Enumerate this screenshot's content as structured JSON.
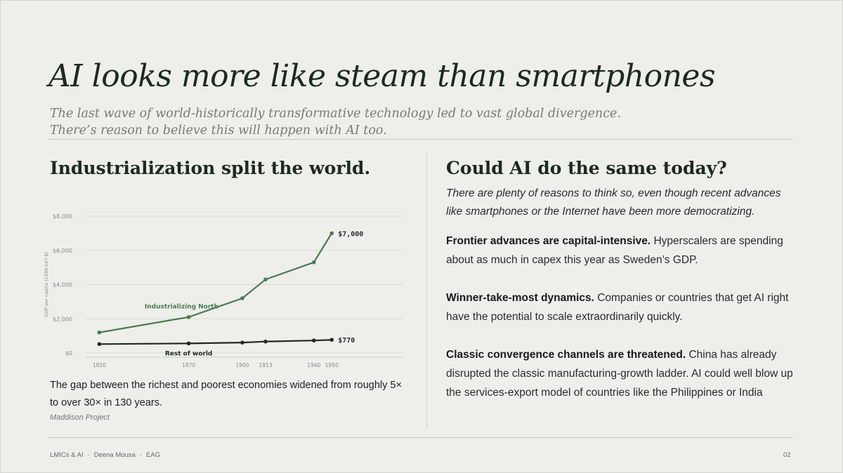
{
  "title": "AI looks more like steam than smartphones",
  "subtitle": {
    "line1": "The last wave of world-historically transformative technology led to vast global divergence.",
    "line2": "There’s reason to believe this will happen with AI too."
  },
  "left": {
    "heading": "Industrialization split the world.",
    "caption": "The gap between the richest and poorest economies widened from roughly 5× to over 30× in 130 years.",
    "source": "Maddison Project"
  },
  "chart_data": {
    "type": "line",
    "ylabel": "GDP per capita (1990 int'l $)",
    "ylim": [
      0,
      8000
    ],
    "yticks": [
      0,
      2000,
      4000,
      6000,
      8000
    ],
    "ytick_labels": [
      "$0",
      "$2,000",
      "$4,000",
      "$6,000",
      "$8,000"
    ],
    "xlim": [
      1812,
      1990
    ],
    "xticks": [
      1820,
      1870,
      1900,
      1913,
      1940,
      1950
    ],
    "grid": true,
    "series": [
      {
        "name": "Industrializing North",
        "color": "#4a7a52",
        "x": [
          1820,
          1870,
          1900,
          1913,
          1940,
          1950
        ],
        "values": [
          1200,
          2100,
          3200,
          4300,
          5300,
          7000
        ],
        "end_label": "$7,000"
      },
      {
        "name": "Rest of world",
        "color": "#1f2a22",
        "x": [
          1820,
          1870,
          1900,
          1913,
          1940,
          1950
        ],
        "values": [
          520,
          560,
          610,
          670,
          730,
          770
        ],
        "end_label": "$770"
      }
    ]
  },
  "right": {
    "heading": "Could AI do the same today?",
    "intro": "There are plenty of reasons to think so, even though recent advances like smartphones or the Internet have been more democratizing.",
    "points": [
      {
        "bold": "Frontier advances are capital-intensive.",
        "text": " Hyperscalers are spending about as much in capex this year as Sweden’s GDP."
      },
      {
        "bold": "Winner-take-most dynamics.",
        "text": " Companies or countries that get AI right have the potential to scale extraordinarily quickly."
      },
      {
        "bold": "Classic convergence channels are threatened.",
        "text": " China has already disrupted the classic manufacturing-growth ladder. AI could well blow up the services-export model of countries like the Philippines or India"
      }
    ]
  },
  "footer": {
    "items": [
      "LMICs & AI",
      "Deena Mousa",
      "EAG"
    ],
    "separator": "·",
    "page": "02"
  }
}
